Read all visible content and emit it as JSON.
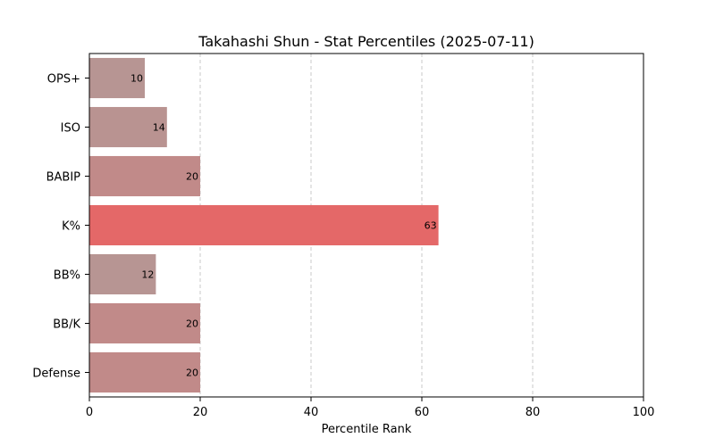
{
  "chart_data": {
    "type": "bar",
    "orientation": "horizontal",
    "title": "Takahashi Shun - Stat Percentiles (2025-07-11)",
    "xlabel": "Percentile Rank",
    "ylabel": "",
    "xlim": [
      0,
      100
    ],
    "x_ticks": [
      0,
      20,
      40,
      60,
      80,
      100
    ],
    "grid": {
      "x": true,
      "style": "dashed"
    },
    "categories": [
      "OPS+",
      "ISO",
      "BABIP",
      "K%",
      "BB%",
      "BB/K",
      "Defense"
    ],
    "values": [
      10,
      14,
      20,
      63,
      12,
      20,
      20
    ],
    "bar_colors": [
      "#b79593",
      "#b99391",
      "#c18a89",
      "#e46868",
      "#b79593",
      "#c18a89",
      "#c18a89"
    ]
  }
}
